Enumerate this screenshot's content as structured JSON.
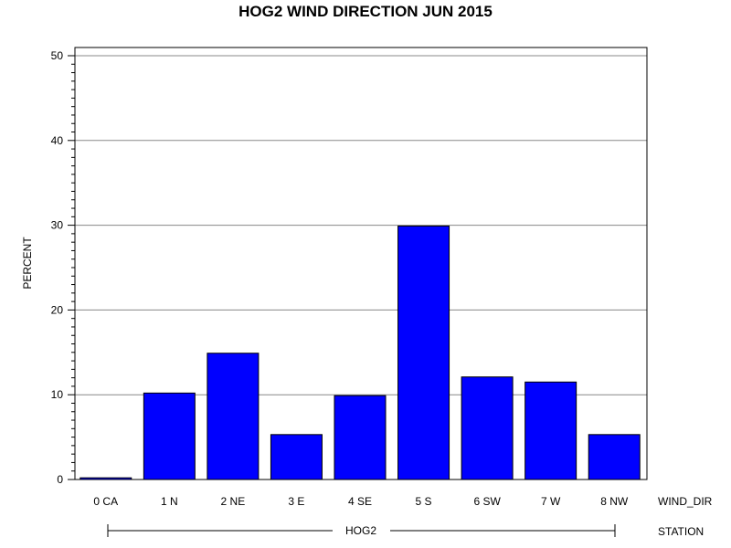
{
  "chart_data": {
    "type": "bar",
    "title": "HOG2 WIND DIRECTION JUN 2015",
    "ylabel": "PERCENT",
    "xlabel": "WIND_DIR",
    "group_axis_label": "STATION",
    "group_label": "HOG2",
    "categories": [
      "0 CA",
      "1 N",
      "2 NE",
      "3 E",
      "4 SE",
      "5 S",
      "6 SW",
      "7 W",
      "8 NW"
    ],
    "values": [
      0.2,
      10.2,
      14.9,
      5.3,
      9.9,
      29.9,
      12.1,
      11.5,
      5.3
    ],
    "ylim": [
      0,
      50
    ],
    "yticks": [
      "0",
      "10",
      "20",
      "30",
      "40",
      "50"
    ],
    "grid": true,
    "bar_color": "#0000ff"
  }
}
